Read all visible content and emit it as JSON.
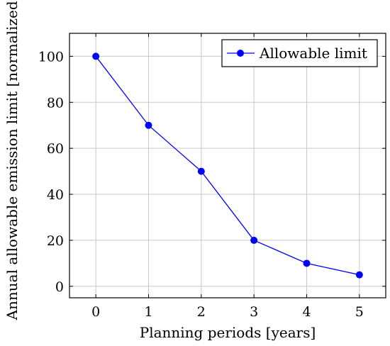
{
  "chart_data": {
    "type": "line",
    "title": "",
    "xlabel": "Planning periods [years]",
    "ylabel": "Annual allowable emission limit [normalized]",
    "x": [
      0,
      1,
      2,
      3,
      4,
      5
    ],
    "series": [
      {
        "name": "Allowable limit",
        "values": [
          100,
          70,
          50,
          20,
          10,
          5
        ],
        "color": "#0000ff",
        "marker": "circle"
      }
    ],
    "xlim": [
      -0.5,
      5.5
    ],
    "ylim": [
      -5,
      110
    ],
    "xticks": [
      0,
      1,
      2,
      3,
      4,
      5
    ],
    "yticks": [
      0,
      20,
      40,
      60,
      80,
      100
    ],
    "grid": true,
    "legend_position": "top-right"
  }
}
